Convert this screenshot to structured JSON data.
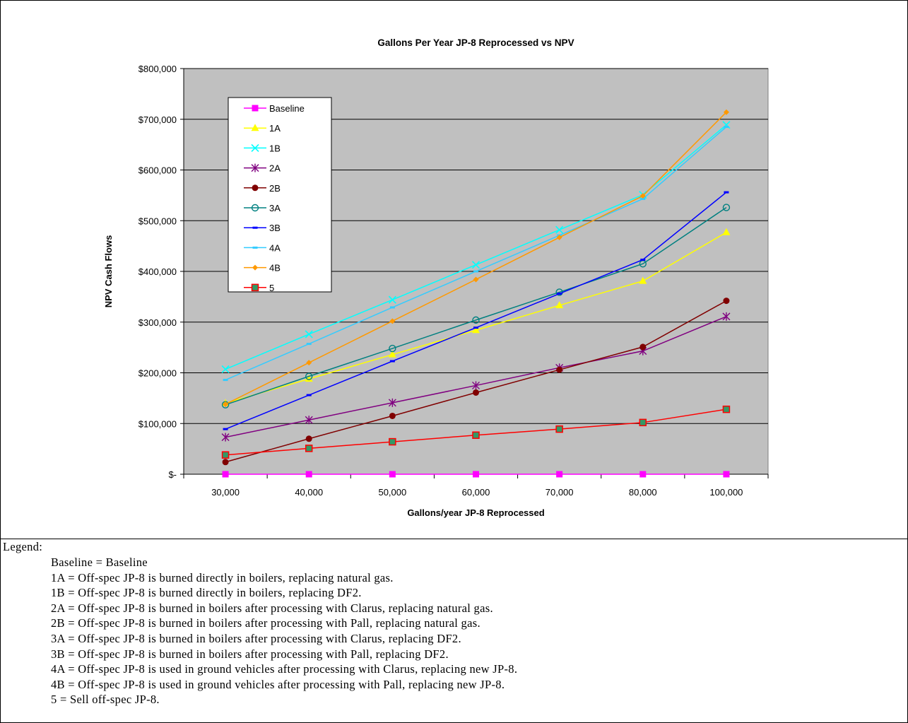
{
  "chart_data": {
    "type": "line",
    "title": "Gallons Per Year JP-8 Reprocessed vs NPV",
    "xlabel": "Gallons/year JP-8 Reprocessed",
    "ylabel": "NPV Cash Flows",
    "categories": [
      "30,000",
      "40,000",
      "50,000",
      "60,000",
      "70,000",
      "80,000",
      "100,000"
    ],
    "ylim": [
      0,
      800000
    ],
    "yticks": [
      {
        "value": 0,
        "label": "$-"
      },
      {
        "value": 100000,
        "label": "$100,000"
      },
      {
        "value": 200000,
        "label": "$200,000"
      },
      {
        "value": 300000,
        "label": "$300,000"
      },
      {
        "value": 400000,
        "label": "$400,000"
      },
      {
        "value": 500000,
        "label": "$500,000"
      },
      {
        "value": 600000,
        "label": "$600,000"
      },
      {
        "value": 700000,
        "label": "$700,000"
      },
      {
        "value": 800000,
        "label": "$800,000"
      }
    ],
    "grid": "horizontal",
    "legend_position": "top-left",
    "plot_background": "#c0c0c0",
    "series": [
      {
        "name": "Baseline",
        "color": "#ff00ff",
        "marker": "square",
        "values": [
          0,
          0,
          0,
          0,
          0,
          0,
          0
        ]
      },
      {
        "name": "1A",
        "color": "#ffff00",
        "marker": "triangle",
        "values": [
          140000,
          188000,
          236000,
          284000,
          333000,
          381000,
          477000
        ]
      },
      {
        "name": "1B",
        "color": "#00ffff",
        "marker": "x",
        "values": [
          207000,
          276000,
          344000,
          413000,
          482000,
          551000,
          689000
        ]
      },
      {
        "name": "2A",
        "color": "#800080",
        "marker": "star",
        "values": [
          73000,
          107000,
          141000,
          175000,
          210000,
          243000,
          311000
        ]
      },
      {
        "name": "2B",
        "color": "#800000",
        "marker": "circle",
        "values": [
          24000,
          70000,
          115000,
          161000,
          206000,
          251000,
          342000
        ]
      },
      {
        "name": "3A",
        "color": "#008080",
        "marker": "open-circle",
        "values": [
          137000,
          193000,
          248000,
          304000,
          359000,
          415000,
          526000
        ]
      },
      {
        "name": "3B",
        "color": "#0000ff",
        "marker": "dash",
        "values": [
          89000,
          156000,
          223000,
          289000,
          356000,
          423000,
          556000
        ]
      },
      {
        "name": "4A",
        "color": "#33ccff",
        "marker": "dash",
        "values": [
          186000,
          257000,
          329000,
          400000,
          471000,
          543000,
          685000
        ]
      },
      {
        "name": "4B",
        "color": "#ff9900",
        "marker": "diamond",
        "values": [
          138000,
          220000,
          302000,
          384000,
          467000,
          549000,
          714000
        ]
      },
      {
        "name": "5",
        "color": "#ff0000",
        "marker": "square-green",
        "values": [
          38000,
          51000,
          64000,
          77000,
          89000,
          102000,
          128000
        ]
      }
    ]
  },
  "legend_text": {
    "title": "Legend:",
    "items": [
      "Baseline = Baseline",
      "1A = Off-spec JP-8 is burned directly in boilers, replacing natural gas.",
      "1B = Off-spec JP-8 is burned directly in boilers, replacing DF2.",
      "2A = Off-spec JP-8 is burned in boilers after processing with Clarus, replacing natural gas.",
      "2B = Off-spec JP-8 is burned in boilers after processing with Pall, replacing natural gas.",
      "3A = Off-spec JP-8 is burned in boilers after processing with Clarus, replacing DF2.",
      "3B = Off-spec JP-8 is burned in boilers after processing with Pall, replacing DF2.",
      "4A = Off-spec JP-8 is used in ground vehicles after processing with Clarus, replacing new JP-8.",
      "4B = Off-spec JP-8 is used in ground vehicles after processing with Pall, replacing new JP-8.",
      "5 = Sell off-spec JP-8."
    ]
  }
}
